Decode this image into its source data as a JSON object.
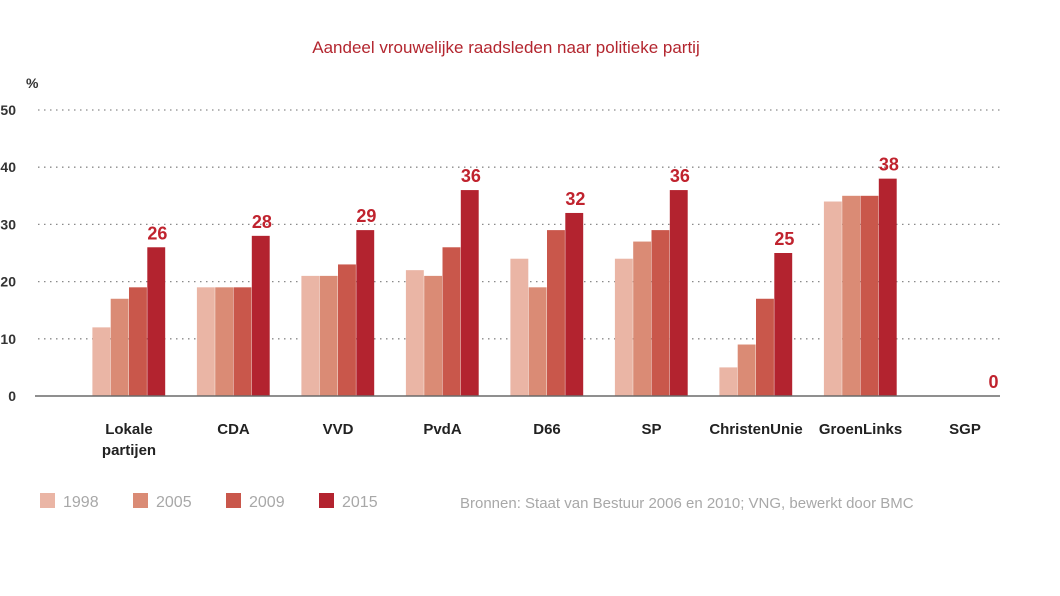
{
  "chart_data": {
    "type": "bar",
    "title": "Aandeel vrouwelijke raadsleden naar politieke partij",
    "ylabel": "%",
    "ylim": [
      0,
      50
    ],
    "yticks": [
      0,
      10,
      20,
      30,
      40,
      50
    ],
    "grid": true,
    "categories": [
      [
        "Lokale",
        "partijen"
      ],
      [
        "CDA"
      ],
      [
        "VVD"
      ],
      [
        "PvdA"
      ],
      [
        "D66"
      ],
      [
        "SP"
      ],
      [
        "ChristenUnie"
      ],
      [
        "GroenLinks"
      ],
      [
        "SGP"
      ]
    ],
    "series": [
      {
        "name": "1998",
        "color": "#eab5a5",
        "values": [
          12,
          19,
          21,
          22,
          24,
          24,
          5,
          34,
          0
        ]
      },
      {
        "name": "2005",
        "color": "#da8b75",
        "values": [
          17,
          19,
          21,
          21,
          19,
          27,
          9,
          35,
          0
        ]
      },
      {
        "name": "2009",
        "color": "#c9574b",
        "values": [
          19,
          19,
          23,
          26,
          29,
          29,
          17,
          35,
          0
        ]
      },
      {
        "name": "2015",
        "color": "#b3232f",
        "values": [
          26,
          28,
          29,
          36,
          32,
          36,
          25,
          38,
          0
        ]
      }
    ],
    "data_labels": [
      "26",
      "28",
      "29",
      "36",
      "32",
      "36",
      "25",
      "38",
      "0"
    ],
    "legend_position": "bottom-left",
    "source": "Bronnen: Staat van Bestuur 2006 en 2010; VNG, bewerkt door BMC"
  }
}
